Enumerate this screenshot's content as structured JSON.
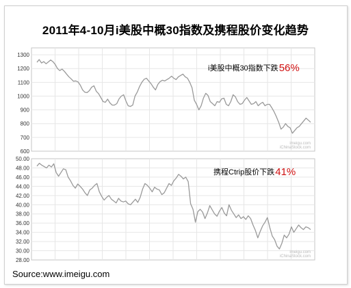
{
  "title": "2011年4-10月i美股中概30指数及携程股价变化趋势",
  "source": "Source:www.imeigu.com",
  "colors": {
    "line": "#999999",
    "accent": "#d01010",
    "grid": "#e6e6e6",
    "panel_border": "#c4c4c4"
  },
  "chart_data": [
    {
      "type": "line",
      "title": "",
      "annotation_text": "i美股中概30指数下跌",
      "annotation_value": "56%",
      "watermark": [
        "imeigu.com",
        "iChinaStock.com"
      ],
      "ylim": [
        600,
        1350
      ],
      "yticks": [
        600,
        700,
        800,
        900,
        1000,
        1100,
        1200,
        1300
      ],
      "ytick_labels": [
        "600",
        "700",
        "800",
        "900",
        "1000",
        "1100",
        "1200",
        "1300"
      ],
      "grid": true,
      "series": [
        {
          "values": [
            1245,
            1265,
            1240,
            1250,
            1235,
            1248,
            1262,
            1250,
            1230,
            1200,
            1185,
            1196,
            1180,
            1160,
            1140,
            1125,
            1108,
            1110,
            1103,
            1080,
            1045,
            1028,
            1025,
            1040,
            1065,
            1075,
            1035,
            1018,
            990,
            960,
            955,
            978,
            950,
            935,
            935,
            945,
            980,
            1000,
            1010,
            965,
            930,
            925,
            935,
            1000,
            1030,
            1070,
            1100,
            1122,
            1130,
            1110,
            1090,
            1065,
            1045,
            1085,
            1105,
            1115,
            1110,
            1120,
            1130,
            1145,
            1130,
            1120,
            1140,
            1150,
            1160,
            1140,
            1130,
            1100,
            1060,
            970,
            940,
            900,
            930,
            985,
            1020,
            1005,
            960,
            945,
            930,
            960,
            955,
            980,
            985,
            940,
            930,
            960,
            1010,
            995,
            960,
            940,
            945,
            970,
            990,
            965,
            940,
            945,
            960,
            930,
            945,
            955,
            930,
            940,
            940,
            915,
            885,
            850,
            810,
            760,
            775,
            800,
            780,
            770,
            730,
            750,
            770,
            780,
            800,
            820,
            840,
            825,
            810
          ]
        }
      ]
    },
    {
      "type": "line",
      "title": "",
      "annotation_text": "携程Ctrip股价下跌",
      "annotation_value": "41%",
      "watermark": [
        "imeigu.com",
        "iChinaStock.com"
      ],
      "ylim": [
        28,
        50
      ],
      "yticks": [
        28,
        30,
        32,
        34,
        36,
        38,
        40,
        42,
        44,
        46,
        48,
        50
      ],
      "ytick_labels": [
        "28.00",
        "30.00",
        "32.00",
        "34.00",
        "36.00",
        "38.00",
        "40.00",
        "42.00",
        "44.00",
        "46.00",
        "48.00",
        "50.00"
      ],
      "grid": true,
      "series": [
        {
          "values": [
            48.4,
            49.0,
            48.6,
            48.3,
            48.0,
            48.6,
            48.2,
            48.9,
            47.0,
            46.2,
            47.0,
            47.8,
            47.6,
            46.0,
            45.2,
            44.2,
            43.6,
            44.5,
            44.0,
            43.4,
            42.6,
            42.0,
            43.2,
            43.6,
            44.2,
            44.6,
            42.8,
            41.8,
            41.0,
            41.6,
            42.0,
            41.2,
            40.8,
            40.4,
            41.4,
            40.8,
            40.6,
            40.8,
            40.2,
            40.0,
            40.6,
            41.2,
            40.5,
            41.6,
            43.4,
            44.6,
            44.2,
            43.6,
            42.8,
            43.8,
            43.4,
            43.2,
            42.2,
            42.6,
            43.6,
            44.6,
            44.2,
            45.2,
            45.8,
            46.6,
            46.2,
            45.6,
            46.0,
            45.0,
            40.2,
            39.0,
            36.2,
            38.5,
            39.0,
            38.4,
            37.0,
            38.2,
            39.8,
            38.9,
            38.0,
            37.5,
            38.6,
            39.4,
            38.2,
            37.6,
            40.0,
            38.8,
            38.0,
            37.2,
            37.8,
            37.0,
            37.4,
            36.8,
            37.6,
            37.0,
            35.6,
            34.4,
            32.8,
            34.2,
            35.4,
            36.2,
            37.2,
            35.0,
            33.2,
            32.4,
            31.0,
            30.4,
            31.6,
            33.4,
            32.8,
            33.6,
            35.2,
            34.0,
            34.8,
            35.6,
            35.0,
            34.6,
            35.2,
            35.0,
            34.6
          ]
        }
      ]
    }
  ]
}
